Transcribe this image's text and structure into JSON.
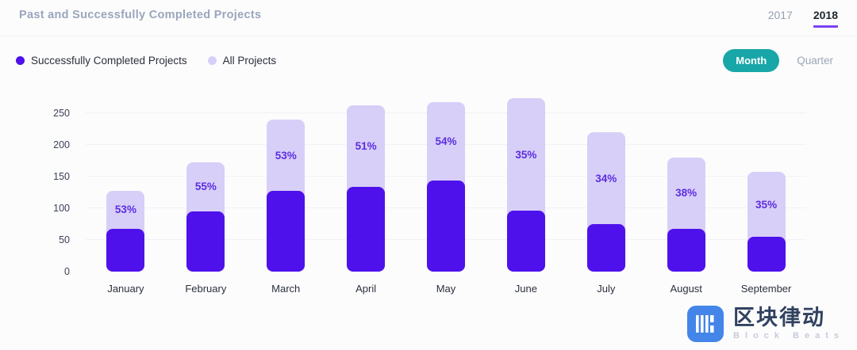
{
  "header": {
    "title": "Past and Successfully Completed Projects",
    "year_tabs": [
      {
        "label": "2017",
        "active": false
      },
      {
        "label": "2018",
        "active": true
      }
    ]
  },
  "legend": {
    "completed": {
      "label": "Successfully Completed Projects",
      "color": "#4e11ec"
    },
    "all": {
      "label": "All Projects",
      "color": "#d7cff8"
    }
  },
  "toolbar": {
    "month_label": "Month",
    "quarter_label": "Quarter",
    "active": "Month",
    "active_color": "#19a6a8"
  },
  "chart_data": {
    "type": "bar",
    "title": "Past and Successfully Completed Projects",
    "xlabel": "",
    "ylabel": "",
    "categories": [
      "January",
      "February",
      "March",
      "April",
      "May",
      "June",
      "July",
      "August",
      "September"
    ],
    "series": [
      {
        "name": "All Projects",
        "color": "#d7cff8",
        "values": [
          128,
          173,
          240,
          263,
          267,
          274,
          220,
          180,
          157
        ]
      },
      {
        "name": "Successfully Completed Projects",
        "color": "#4e11ec",
        "values": [
          68,
          95,
          127,
          134,
          144,
          96,
          75,
          68,
          55
        ]
      }
    ],
    "labels": [
      "53%",
      "55%",
      "53%",
      "51%",
      "54%",
      "35%",
      "34%",
      "38%",
      "35%"
    ],
    "yticks": [
      0,
      50,
      100,
      150,
      200,
      250
    ],
    "ylim": [
      0,
      275
    ],
    "grid": true,
    "legend_position": "top-left",
    "label_color": "#5c2ce0"
  },
  "watermark": {
    "cn": "区块律动",
    "en": "Block Beats"
  }
}
